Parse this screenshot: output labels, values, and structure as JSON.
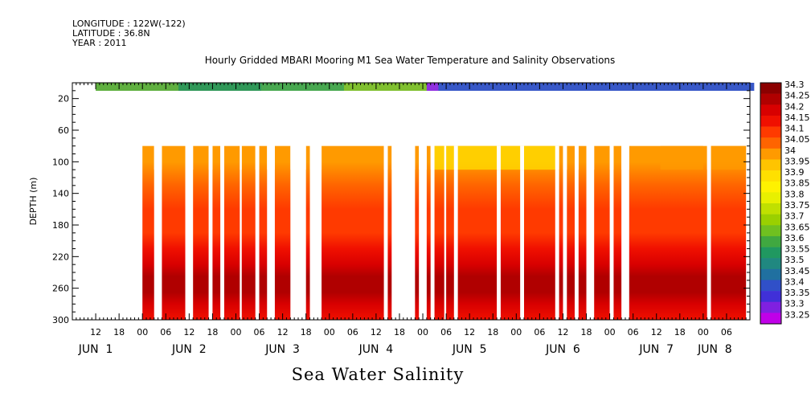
{
  "header": {
    "longitude": "LONGITUDE : 122W(-122)",
    "latitude": "LATITUDE : 36.8N",
    "year": "YEAR : 2011"
  },
  "chart_data": {
    "type": "heatmap",
    "title": "Hourly Gridded MBARI Mooring M1 Sea Water Temperature and Salinity Observations",
    "xlabel": "Sea Water Salinity",
    "ylabel": "DEPTH (m)",
    "x_range_hours_label": [
      "JUN 1 06:00",
      "JUN 8 12:00"
    ],
    "ylim": [
      300,
      0
    ],
    "y_ticks": [
      "20",
      "60",
      "100",
      "140",
      "180",
      "220",
      "260",
      "300"
    ],
    "x_hour_ticks": [
      "12",
      "18",
      "00",
      "06",
      "12",
      "18",
      "00",
      "06",
      "12",
      "18",
      "00",
      "06",
      "12",
      "18",
      "00",
      "06",
      "12",
      "18",
      "00",
      "06",
      "12",
      "18",
      "00",
      "06",
      "12",
      "18",
      "00",
      "06"
    ],
    "x_date_labels": [
      "JUN  1",
      "JUN  2",
      "JUN  3",
      "JUN  4",
      "JUN  5",
      "JUN  6",
      "JUN  7",
      "JUN  8"
    ],
    "colorbar": {
      "labels": [
        "34.3",
        "34.25",
        "34.2",
        "34.15",
        "34.1",
        "34.05",
        "34",
        "33.95",
        "33.9",
        "33.85",
        "33.8",
        "33.75",
        "33.7",
        "33.65",
        "33.6",
        "33.55",
        "33.5",
        "33.45",
        "33.4",
        "33.35",
        "33.3",
        "33.25"
      ],
      "colors": [
        "#8b0000",
        "#b00000",
        "#d80000",
        "#f01000",
        "#ff3a00",
        "#ff6400",
        "#ff9a00",
        "#ffc400",
        "#ffe000",
        "#fff200",
        "#e8f000",
        "#c0e000",
        "#9ad000",
        "#70c020",
        "#40a840",
        "#209860",
        "#208880",
        "#2070a0",
        "#3050c8",
        "#4030d8",
        "#8020e0",
        "#c000e8"
      ]
    },
    "surface_layer": {
      "depth": "~0-5 m",
      "segments": [
        {
          "from": "JUN 1 12:00",
          "to": "JUN 5 01:00",
          "range": [
            33.55,
            33.8
          ],
          "colors": [
            "#60b040",
            "#309858",
            "#48a850",
            "#80c030"
          ]
        },
        {
          "from": "JUN 5 01:00",
          "to": "JUN 5 04:00",
          "range": [
            33.3,
            33.35
          ],
          "colors": [
            "#9030e0"
          ]
        },
        {
          "from": "JUN 5 04:00",
          "to": "JUN 8 13:00",
          "range": [
            33.4,
            33.45
          ],
          "colors": [
            "#3858c8"
          ]
        }
      ]
    },
    "data_depth_range": [
      80,
      300
    ],
    "data_blocks": [
      {
        "start": "JUN 2 00:00",
        "end": "JUN 2 03:00"
      },
      {
        "start": "JUN 2 05:00",
        "end": "JUN 2 11:00"
      },
      {
        "start": "JUN 2 13:00",
        "end": "JUN 2 17:00"
      },
      {
        "start": "JUN 2 18:00",
        "end": "JUN 2 20:00"
      },
      {
        "start": "JUN 2 21:00",
        "end": "JUN 3 01:00"
      },
      {
        "start": "JUN 3 01:30",
        "end": "JUN 3 05:00"
      },
      {
        "start": "JUN 3 06:00",
        "end": "JUN 3 08:00"
      },
      {
        "start": "JUN 3 10:00",
        "end": "JUN 3 14:00"
      },
      {
        "start": "JUN 3 18:00",
        "end": "JUN 3 19:00"
      },
      {
        "start": "JUN 3 22:00",
        "end": "JUN 4 14:00"
      },
      {
        "start": "JUN 4 15:00",
        "end": "JUN 4 16:00"
      },
      {
        "start": "JUN 4 22:00",
        "end": "JUN 4 23:00"
      },
      {
        "start": "JUN 5 01:00",
        "end": "JUN 5 02:00"
      },
      {
        "start": "JUN 5 03:00",
        "end": "JUN 5 05:30"
      },
      {
        "start": "JUN 5 06:00",
        "end": "JUN 5 08:00"
      },
      {
        "start": "JUN 5 09:00",
        "end": "JUN 5 19:00"
      },
      {
        "start": "JUN 5 20:00",
        "end": "JUN 6 01:00"
      },
      {
        "start": "JUN 6 02:00",
        "end": "JUN 6 10:00"
      },
      {
        "start": "JUN 6 11:00",
        "end": "JUN 6 12:00"
      },
      {
        "start": "JUN 6 13:00",
        "end": "JUN 6 15:00"
      },
      {
        "start": "JUN 6 16:00",
        "end": "JUN 6 18:00"
      },
      {
        "start": "JUN 6 20:00",
        "end": "JUN 7 00:00"
      },
      {
        "start": "JUN 7 01:00",
        "end": "JUN 7 03:00"
      },
      {
        "start": "JUN 7 05:00",
        "end": "JUN 8 01:00"
      },
      {
        "start": "JUN 8 02:00",
        "end": "JUN 8 11:00"
      }
    ],
    "depth_profile": [
      {
        "depth": 80,
        "value": 34.0
      },
      {
        "depth": 100,
        "value": 34.0
      },
      {
        "depth": 130,
        "value": 34.05
      },
      {
        "depth": 160,
        "value": 34.1
      },
      {
        "depth": 190,
        "value": 34.1
      },
      {
        "depth": 210,
        "value": 34.15
      },
      {
        "depth": 230,
        "value": 34.2
      },
      {
        "depth": 245,
        "value": 34.25
      },
      {
        "depth": 265,
        "value": 34.25
      },
      {
        "depth": 280,
        "value": 34.2
      },
      {
        "depth": 300,
        "value": 34.15
      }
    ],
    "fresh_patches": [
      {
        "from": "JUN 5 03:00",
        "to": "JUN 6 11:00",
        "depth": [
          80,
          110
        ],
        "range": [
          33.9,
          33.95
        ]
      },
      {
        "from": "JUN 7 13:00",
        "to": "JUN 8 00:00",
        "depth": [
          80,
          110
        ],
        "range": [
          33.95,
          34.0
        ]
      },
      {
        "from": "JUN 8 02:00",
        "to": "JUN 8 11:00",
        "depth": [
          80,
          110
        ],
        "range": [
          33.95,
          34.0
        ]
      }
    ]
  }
}
